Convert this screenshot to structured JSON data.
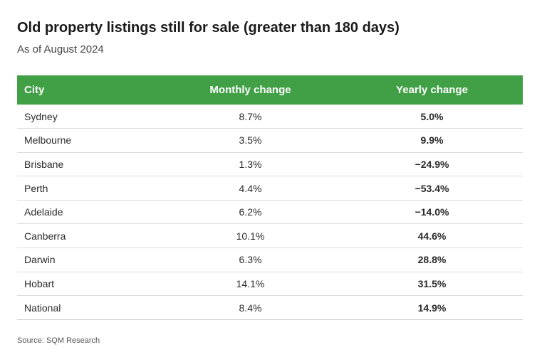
{
  "header": {
    "title": "Old property listings still for sale (greater than 180 days)",
    "subtitle": "As of August 2024"
  },
  "colors": {
    "header_bg": "#41a046"
  },
  "chart_data": {
    "type": "table",
    "columns": [
      "City",
      "Monthly change",
      "Yearly change"
    ],
    "rows": [
      [
        "Sydney",
        "8.7%",
        "5.0%"
      ],
      [
        "Melbourne",
        "3.5%",
        "9.9%"
      ],
      [
        "Brisbane",
        "1.3%",
        "−24.9%"
      ],
      [
        "Perth",
        "4.4%",
        "−53.4%"
      ],
      [
        "Adelaide",
        "6.2%",
        "−14.0%"
      ],
      [
        "Canberra",
        "10.1%",
        "44.6%"
      ],
      [
        "Darwin",
        "6.3%",
        "28.8%"
      ],
      [
        "Hobart",
        "14.1%",
        "31.5%"
      ],
      [
        "National",
        "8.4%",
        "14.9%"
      ]
    ]
  },
  "footer": {
    "source": "Source: SQM Research"
  }
}
